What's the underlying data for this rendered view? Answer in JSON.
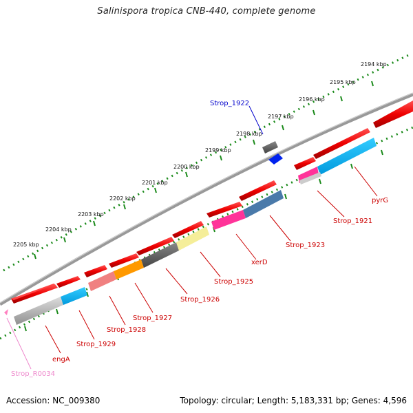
{
  "title": "Salinispora tropica CNB-440, complete genome",
  "footer": {
    "accession": "Accession: NC_009380",
    "summary": "Topology: circular; Length: 5,183,331 bp; Genes: 4,596"
  },
  "scale_labels": [
    "2194 kbp",
    "2195 kbp",
    "2196 kbp",
    "2197 kbp",
    "2198 kbp",
    "2199 kbp",
    "2200 kbp",
    "2201 kbp",
    "2202 kbp",
    "2203 kbp",
    "2204 kbp",
    "2205 kbp"
  ],
  "gene_labels": [
    {
      "id": "l-strop1922",
      "text": "Strop_1922",
      "color": "#0000cc"
    },
    {
      "id": "l-pyrg",
      "text": "pyrG",
      "color": "#cc0000"
    },
    {
      "id": "l-strop1921",
      "text": "Strop_1921",
      "color": "#cc0000"
    },
    {
      "id": "l-strop1923",
      "text": "Strop_1923",
      "color": "#cc0000"
    },
    {
      "id": "l-xerd",
      "text": "xerD",
      "color": "#cc0000"
    },
    {
      "id": "l-strop1925",
      "text": "Strop_1925",
      "color": "#cc0000"
    },
    {
      "id": "l-strop1926",
      "text": "Strop_1926",
      "color": "#cc0000"
    },
    {
      "id": "l-strop1927",
      "text": "Strop_1927",
      "color": "#cc0000"
    },
    {
      "id": "l-strop1928",
      "text": "Strop_1928",
      "color": "#cc0000"
    },
    {
      "id": "l-strop1929",
      "text": "Strop_1929",
      "color": "#cc0000"
    },
    {
      "id": "l-enga",
      "text": "engA",
      "color": "#cc0000"
    },
    {
      "id": "l-stropr0034",
      "text": "Strop_R0034",
      "color": "#ee88cc"
    }
  ],
  "colors": {
    "cds": "#ff0000",
    "backbone": "#808080",
    "tick": "#1a8a1a",
    "trna": "#ff80c0"
  }
}
